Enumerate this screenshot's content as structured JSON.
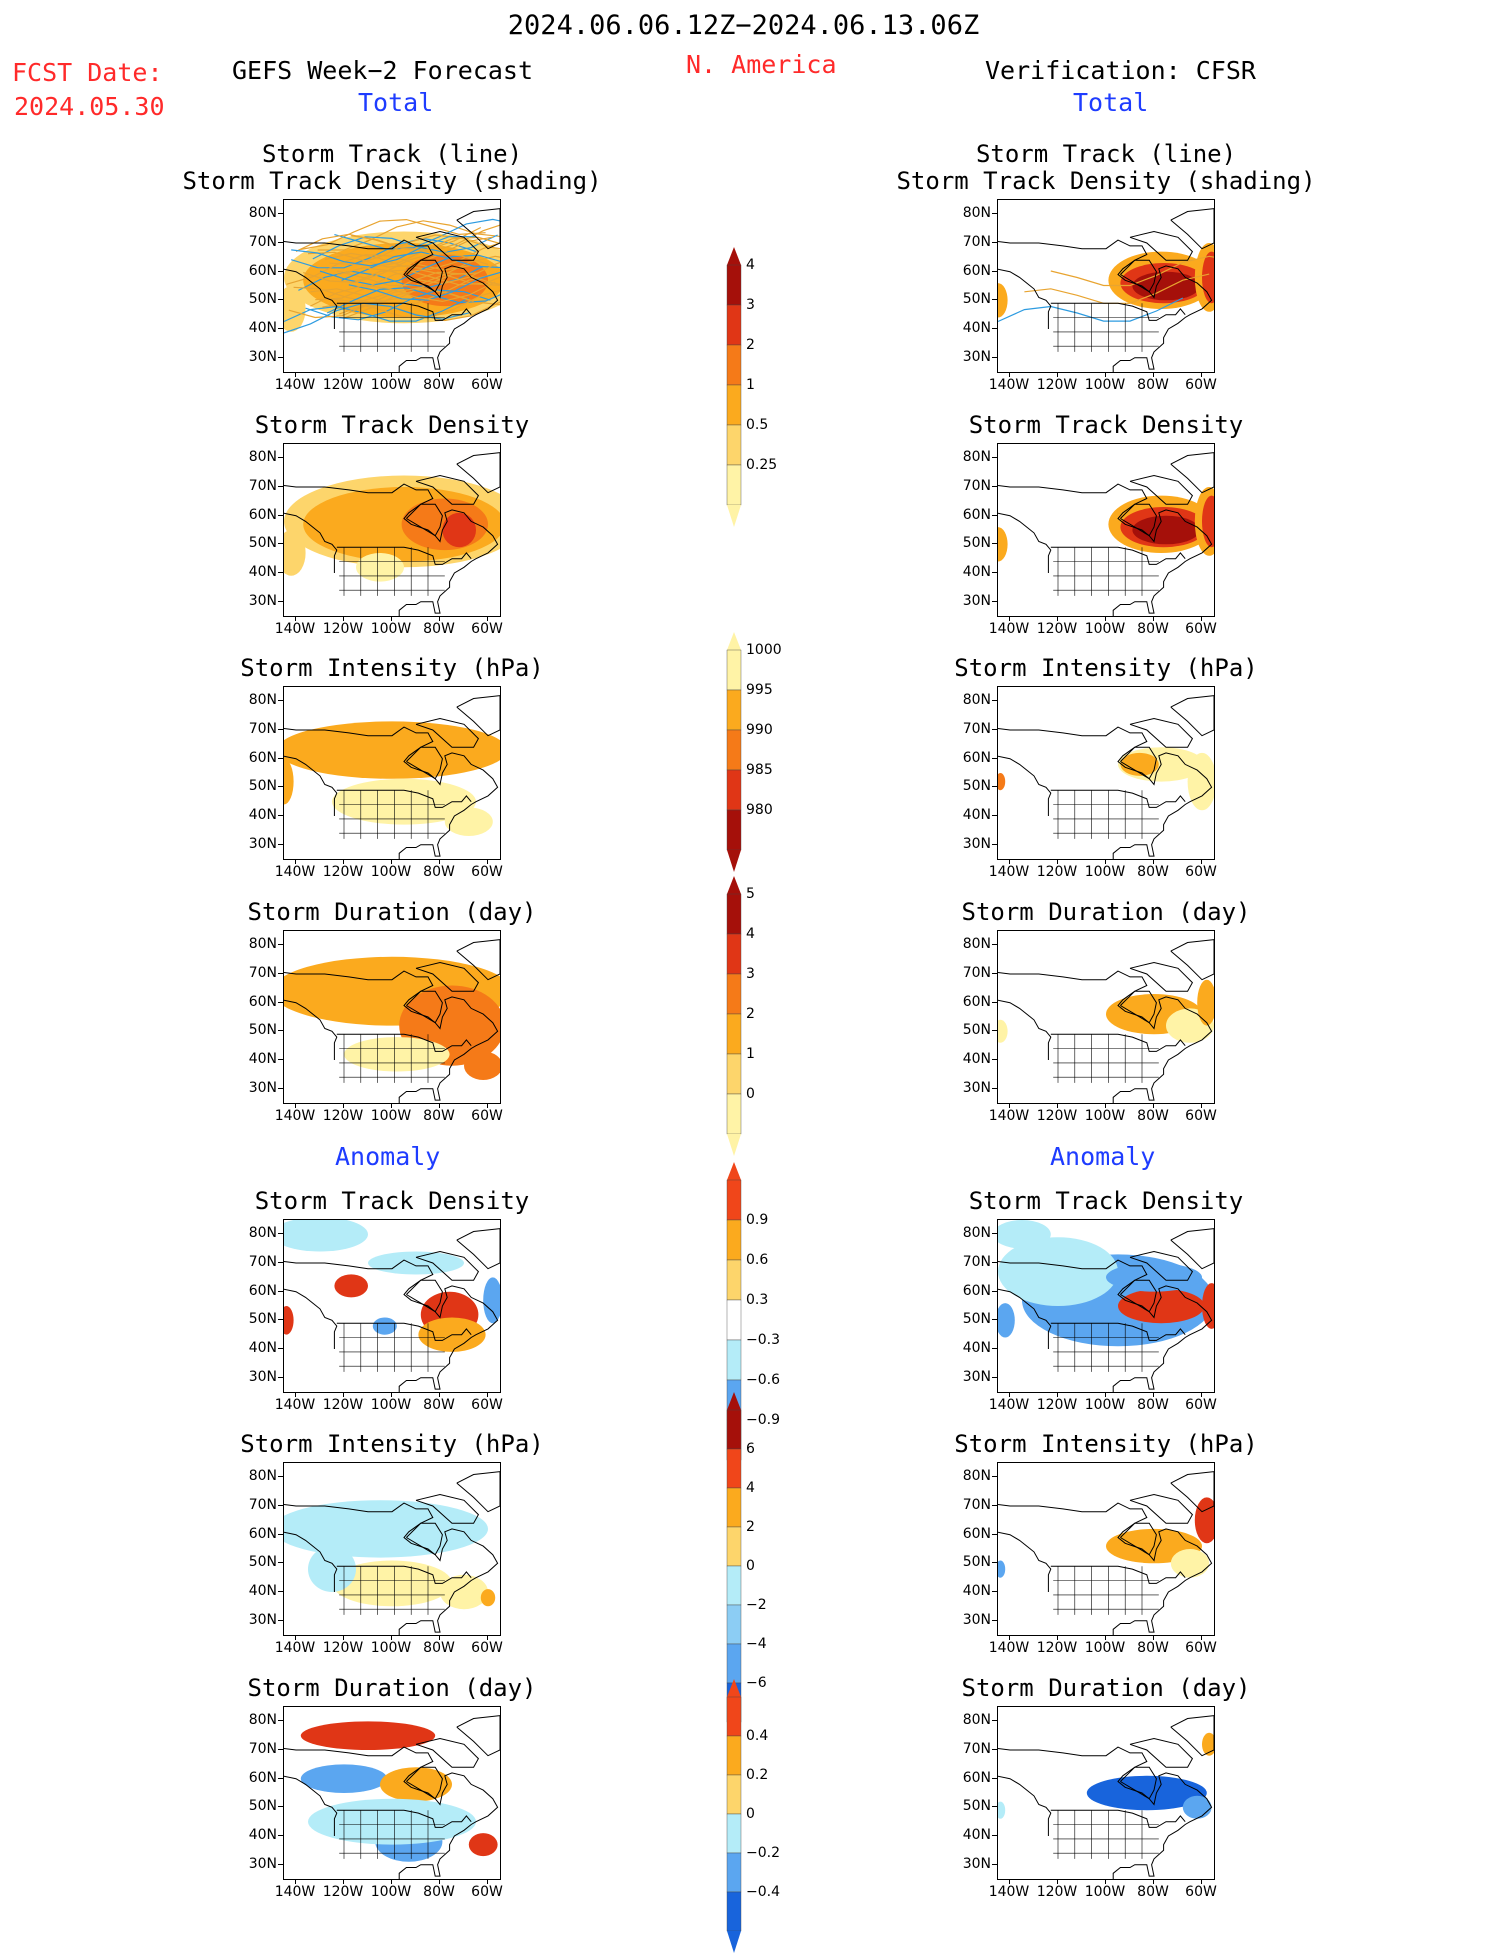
{
  "header": {
    "date_range": "2024.06.06.12Z−2024.06.13.06Z",
    "fcst_label": "FCST Date:",
    "fcst_date": "2024.05.30",
    "forecast_title": "GEFS Week−2 Forecast",
    "region": "N. America",
    "verification_title": "Verification: CFSR",
    "total_label": "Total",
    "anomaly_label": "Anomaly"
  },
  "axes": {
    "x_ticks": [
      "140W",
      "120W",
      "100W",
      "80W",
      "60W"
    ],
    "y_ticks": [
      "80N",
      "70N",
      "60N",
      "50N",
      "40N",
      "30N"
    ],
    "x_range_deg_lon": [
      -145,
      -55
    ],
    "y_range_deg_lat": [
      25,
      85
    ]
  },
  "colors": {
    "d_lightest": "#fff3a6",
    "d_light": "#fdd56b",
    "d_mid": "#fbaa1e",
    "d_orange": "#f57a18",
    "d_red": "#e03616",
    "d_darkred": "#a5100a",
    "a_neg3": "#1864dc",
    "a_neg2": "#5ba6f0",
    "a_neg1": "#b4ecf8",
    "track_gold": "#e8a430",
    "track_blue": "#2d9be0"
  },
  "chart_data": [
    {
      "type": "heatmap",
      "id": "f_track",
      "panel": "forecast",
      "title_lines": [
        "Storm Track (line)",
        "Storm Track Density (shading)"
      ],
      "overlay": "storm tracks"
    },
    {
      "type": "heatmap",
      "id": "f_density",
      "panel": "forecast",
      "title_lines": [
        "Storm Track Density"
      ]
    },
    {
      "type": "heatmap",
      "id": "f_intensity",
      "panel": "forecast",
      "title_lines": [
        "Storm Intensity (hPa)"
      ]
    },
    {
      "type": "heatmap",
      "id": "f_duration",
      "panel": "forecast",
      "title_lines": [
        "Storm Duration (day)"
      ]
    },
    {
      "type": "heatmap",
      "id": "f_density_anom",
      "panel": "forecast",
      "title_lines": [
        "Storm Track Density"
      ]
    },
    {
      "type": "heatmap",
      "id": "f_intensity_anom",
      "panel": "forecast",
      "title_lines": [
        "Storm Intensity (hPa)"
      ]
    },
    {
      "type": "heatmap",
      "id": "f_duration_anom",
      "panel": "forecast",
      "title_lines": [
        "Storm Duration (day)"
      ]
    },
    {
      "type": "heatmap",
      "id": "v_track",
      "panel": "verification",
      "title_lines": [
        "Storm Track (line)",
        "Storm Track Density (shading)"
      ],
      "overlay": "storm tracks"
    },
    {
      "type": "heatmap",
      "id": "v_density",
      "panel": "verification",
      "title_lines": [
        "Storm Track Density"
      ]
    },
    {
      "type": "heatmap",
      "id": "v_intensity",
      "panel": "verification",
      "title_lines": [
        "Storm Intensity (hPa)"
      ]
    },
    {
      "type": "heatmap",
      "id": "v_duration",
      "panel": "verification",
      "title_lines": [
        "Storm Duration (day)"
      ]
    },
    {
      "type": "heatmap",
      "id": "v_density_anom",
      "panel": "verification",
      "title_lines": [
        "Storm Track Density"
      ]
    },
    {
      "type": "heatmap",
      "id": "v_intensity_anom",
      "panel": "verification",
      "title_lines": [
        "Storm Intensity (hPa)"
      ]
    },
    {
      "type": "heatmap",
      "id": "v_duration_anom",
      "panel": "verification",
      "title_lines": [
        "Storm Duration (day)"
      ]
    }
  ],
  "colorbars": [
    {
      "id": "cb_density",
      "labels": [
        "4",
        "3",
        "2",
        "1",
        "0.5",
        "0.25"
      ],
      "colors": [
        "#a5100a",
        "#e03616",
        "#f57a18",
        "#fbaa1e",
        "#fdd56b",
        "#fff3a6"
      ]
    },
    {
      "id": "cb_intensity",
      "labels": [
        "1000",
        "995",
        "990",
        "985",
        "980"
      ],
      "colors": [
        "#fff3a6",
        "#fbaa1e",
        "#f57a18",
        "#e03616",
        "#a5100a"
      ]
    },
    {
      "id": "cb_duration",
      "labels": [
        "5",
        "4",
        "3",
        "2",
        "1",
        "0"
      ],
      "colors": [
        "#a5100a",
        "#e03616",
        "#f57a18",
        "#fbaa1e",
        "#fdd56b",
        "#fff3a6"
      ]
    },
    {
      "id": "cb_density_anom",
      "labels": [
        "0.9",
        "0.6",
        "0.3",
        "−0.3",
        "−0.6",
        "−0.9"
      ],
      "colors": [
        "#f0461a",
        "#fbaa1e",
        "#fdd56b",
        "#ffffff",
        "#b4ecf8",
        "#5ba6f0",
        "#1864dc"
      ]
    },
    {
      "id": "cb_intensity_anom",
      "labels": [
        "6",
        "4",
        "2",
        "0",
        "−2",
        "−4",
        "−6"
      ],
      "colors": [
        "#a5100a",
        "#f0461a",
        "#fbaa1e",
        "#fdd56b",
        "#b4ecf8",
        "#8ccdf4",
        "#5ba6f0",
        "#1864dc"
      ]
    },
    {
      "id": "cb_duration_anom",
      "labels": [
        "0.4",
        "0.2",
        "0",
        "−0.2",
        "−0.4"
      ],
      "colors": [
        "#f0461a",
        "#fbaa1e",
        "#fdd56b",
        "#b4ecf8",
        "#5ba6f0",
        "#1864dc"
      ]
    }
  ]
}
